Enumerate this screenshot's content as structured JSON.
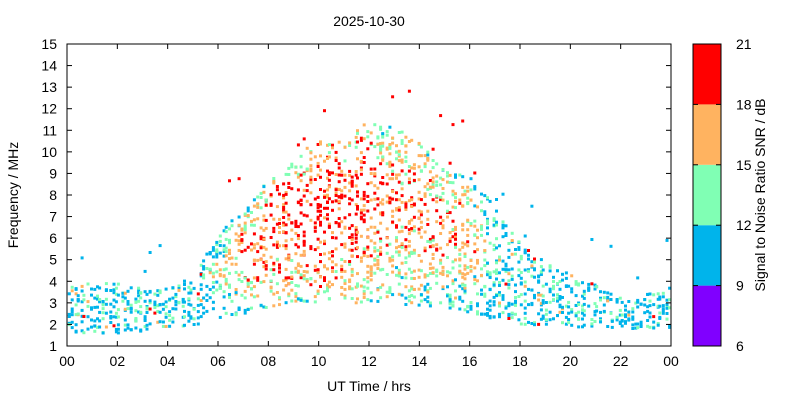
{
  "chart_data": {
    "type": "heatmap",
    "title": "2025-10-30",
    "xlabel": "UT Time / hrs",
    "ylabel": "Frequency / MHz",
    "xlim": [
      0,
      24
    ],
    "ylim": [
      1,
      15
    ],
    "x_ticks": [
      "00",
      "02",
      "04",
      "06",
      "08",
      "10",
      "12",
      "14",
      "16",
      "18",
      "20",
      "22",
      "00"
    ],
    "y_ticks": [
      "1",
      "2",
      "3",
      "4",
      "5",
      "6",
      "7",
      "8",
      "9",
      "10",
      "11",
      "12",
      "13",
      "14",
      "15"
    ],
    "colorbar": {
      "label": "Signal to Noise Ratio SNR / dB",
      "ticks": [
        "6",
        "9",
        "12",
        "15",
        "18",
        "21"
      ],
      "bins": [
        {
          "range": [
            6,
            9
          ],
          "color": "#8000ff"
        },
        {
          "range": [
            9,
            12
          ],
          "color": "#00b4eb"
        },
        {
          "range": [
            12,
            15
          ],
          "color": "#80ffb4"
        },
        {
          "range": [
            15,
            18
          ],
          "color": "#ffb360"
        },
        {
          "range": [
            18,
            21
          ],
          "color": "#ff0000"
        }
      ]
    },
    "envelope": {
      "hours": [
        0,
        1,
        2,
        3,
        4,
        5,
        6,
        7,
        8,
        9,
        10,
        11,
        12,
        13,
        14,
        15,
        16,
        17,
        18,
        19,
        20,
        21,
        22,
        23,
        24
      ],
      "low_mhz": [
        1.6,
        1.6,
        1.6,
        1.7,
        1.8,
        1.9,
        2.2,
        2.5,
        2.8,
        3.0,
        3.0,
        3.0,
        3.0,
        3.0,
        2.8,
        2.8,
        2.5,
        2.2,
        2.0,
        1.9,
        1.8,
        1.8,
        1.8,
        1.8,
        1.8
      ],
      "high_mhz": [
        3.8,
        3.9,
        4.0,
        3.8,
        3.7,
        4.2,
        6.3,
        7.3,
        8.8,
        9.8,
        10.5,
        10.5,
        11.5,
        11.2,
        10.3,
        9.3,
        8.8,
        7.5,
        5.8,
        4.8,
        4.3,
        3.8,
        3.2,
        3.4,
        3.8
      ],
      "dominant_snr_db": [
        10,
        10,
        10,
        11,
        11,
        12,
        15,
        18,
        19,
        20,
        20,
        20,
        19,
        18,
        18,
        18,
        17,
        13,
        11,
        10,
        10,
        10,
        10,
        10,
        10
      ]
    }
  }
}
